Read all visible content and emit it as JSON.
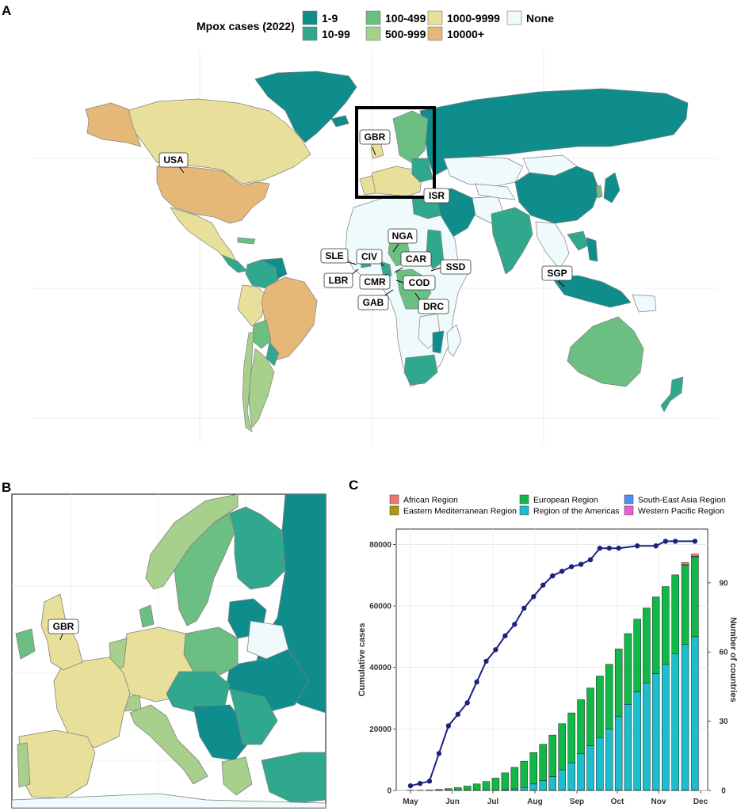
{
  "panels": {
    "a": "A",
    "b": "B",
    "c": "C"
  },
  "map_legend": {
    "title": "Mpox cases (2022)",
    "items": [
      {
        "label": "1-9",
        "color": "#0f8c8c"
      },
      {
        "label": "10-99",
        "color": "#2fa88e"
      },
      {
        "label": "100-499",
        "color": "#6cbf82"
      },
      {
        "label": "500-999",
        "color": "#a7d08c"
      },
      {
        "label": "1000-9999",
        "color": "#e8e09a"
      },
      {
        "label": "10000+",
        "color": "#e6b877"
      },
      {
        "label": "None",
        "color": "#eefafb"
      }
    ]
  },
  "map_labels": [
    "USA",
    "GBR",
    "ISR",
    "NGA",
    "SLE",
    "CIV",
    "CAR",
    "SSD",
    "LBR",
    "CMR",
    "COD",
    "GAB",
    "DRC",
    "SGP"
  ],
  "inset_labels": [
    "GBR"
  ],
  "chart_data": {
    "type": "bar",
    "subtype": "stacked bar with line overlay",
    "categories": [
      "May 1",
      "May 8",
      "May 15",
      "May 22",
      "May 29",
      "Jun 5",
      "Jun 12",
      "Jun 19",
      "Jun 26",
      "Jul 3",
      "Jul 10",
      "Jul 17",
      "Jul 24",
      "Jul 31",
      "Aug 7",
      "Aug 14",
      "Aug 21",
      "Aug 28",
      "Sep 4",
      "Sep 11",
      "Sep 18",
      "Sep 25",
      "Oct 2",
      "Oct 9",
      "Oct 16",
      "Oct 23",
      "Oct 30",
      "Nov 6",
      "Nov 13",
      "Nov 20",
      "Nov 27"
    ],
    "x_ticks": [
      "May",
      "Jun",
      "Jul",
      "Aug",
      "Sep",
      "Oct",
      "Nov",
      "Dec"
    ],
    "series": [
      {
        "name": "African Region",
        "color": "#f07470",
        "values": [
          0,
          0,
          0,
          0,
          0,
          0,
          0,
          0,
          0,
          0,
          0,
          0,
          0,
          0,
          0,
          0,
          0,
          0,
          0,
          0,
          0,
          0,
          0,
          0,
          0,
          0,
          0,
          0,
          0,
          700,
          750
        ]
      },
      {
        "name": "Eastern Mediterranean Region",
        "color": "#b09a00",
        "values": [
          0,
          0,
          0,
          0,
          0,
          0,
          0,
          0,
          0,
          0,
          0,
          0,
          0,
          0,
          0,
          0,
          0,
          0,
          0,
          0,
          0,
          0,
          0,
          0,
          0,
          0,
          0,
          0,
          0,
          100,
          100
        ]
      },
      {
        "name": "European Region",
        "color": "#12b847",
        "values": [
          0,
          0,
          100,
          300,
          600,
          900,
          1400,
          2100,
          2900,
          4000,
          5500,
          7000,
          8500,
          10200,
          11800,
          13500,
          15000,
          16200,
          17500,
          18800,
          20000,
          21000,
          22000,
          23000,
          23700,
          24300,
          24900,
          25300,
          25600,
          25800,
          26000
        ]
      },
      {
        "name": "Region of the Americas",
        "color": "#1bbecc",
        "values": [
          0,
          0,
          0,
          0,
          0,
          0,
          0,
          0,
          0,
          0,
          200,
          500,
          1000,
          2100,
          3200,
          4500,
          6700,
          9000,
          12000,
          14500,
          17200,
          20000,
          24000,
          28000,
          32000,
          35000,
          38000,
          41000,
          44500,
          47500,
          50000
        ]
      },
      {
        "name": "South-East Asia Region",
        "color": "#4e8ff0",
        "values": [
          0,
          0,
          0,
          0,
          0,
          0,
          0,
          0,
          0,
          0,
          0,
          0,
          0,
          0,
          0,
          0,
          0,
          0,
          0,
          0,
          0,
          0,
          0,
          0,
          0,
          0,
          0,
          0,
          0,
          0,
          0
        ]
      },
      {
        "name": "Western Pacific Region",
        "color": "#ea5fcf",
        "values": [
          0,
          0,
          0,
          0,
          0,
          0,
          0,
          0,
          0,
          0,
          0,
          0,
          0,
          0,
          0,
          0,
          0,
          0,
          0,
          0,
          0,
          0,
          0,
          0,
          0,
          0,
          0,
          0,
          0,
          0,
          0
        ]
      }
    ],
    "bar_totals": [
      0,
      0,
      100,
      300,
      600,
      900,
      1400,
      2100,
      2900,
      4000,
      5800,
      7600,
      9600,
      12400,
      15100,
      18100,
      21800,
      25300,
      29700,
      33600,
      37600,
      41400,
      46300,
      51400,
      56200,
      60100,
      63800,
      67000,
      70800,
      74100,
      76900
    ],
    "bar_totals_visible": [
      0,
      0,
      150,
      300,
      650,
      900,
      1500,
      2200,
      3100,
      4300,
      5900,
      7700,
      8800,
      10500,
      12700,
      15000,
      18200,
      22000,
      25900,
      29800,
      34000,
      38000,
      42000,
      45900,
      49700,
      53300,
      56500,
      59500,
      62200,
      64700,
      66900
    ],
    "line": {
      "name": "Number of countries",
      "color": "#1a237e",
      "x": [
        "May 1",
        "May 8",
        "May 15",
        "May 22",
        "May 29",
        "Jun 5",
        "Jun 12",
        "Jun 19",
        "Jun 26",
        "Jul 3",
        "Jul 10",
        "Jul 17",
        "Jul 24",
        "Jul 31",
        "Aug 7",
        "Aug 14",
        "Aug 21",
        "Aug 28",
        "Sep 4",
        "Sep 11",
        "Sep 18",
        "Sep 25",
        "Oct 2",
        "Oct 16",
        "Oct 30",
        "Nov 6",
        "Nov 13",
        "Nov 27"
      ],
      "values": [
        2,
        3,
        4,
        16,
        28,
        33,
        38,
        47,
        56,
        61,
        67,
        72,
        79,
        84,
        89,
        93,
        95,
        97,
        98,
        100,
        105,
        105,
        105,
        106,
        106,
        108,
        108,
        108
      ]
    },
    "ylabel": "Cumulative cases",
    "y2label": "Number of countries",
    "ylim": [
      0,
      85000
    ],
    "y_ticks": [
      0,
      20000,
      40000,
      60000,
      80000
    ],
    "y2lim": [
      0,
      113.3
    ],
    "y2_ticks": [
      0,
      30,
      60,
      90
    ],
    "grid": true,
    "legend_position": "top"
  }
}
